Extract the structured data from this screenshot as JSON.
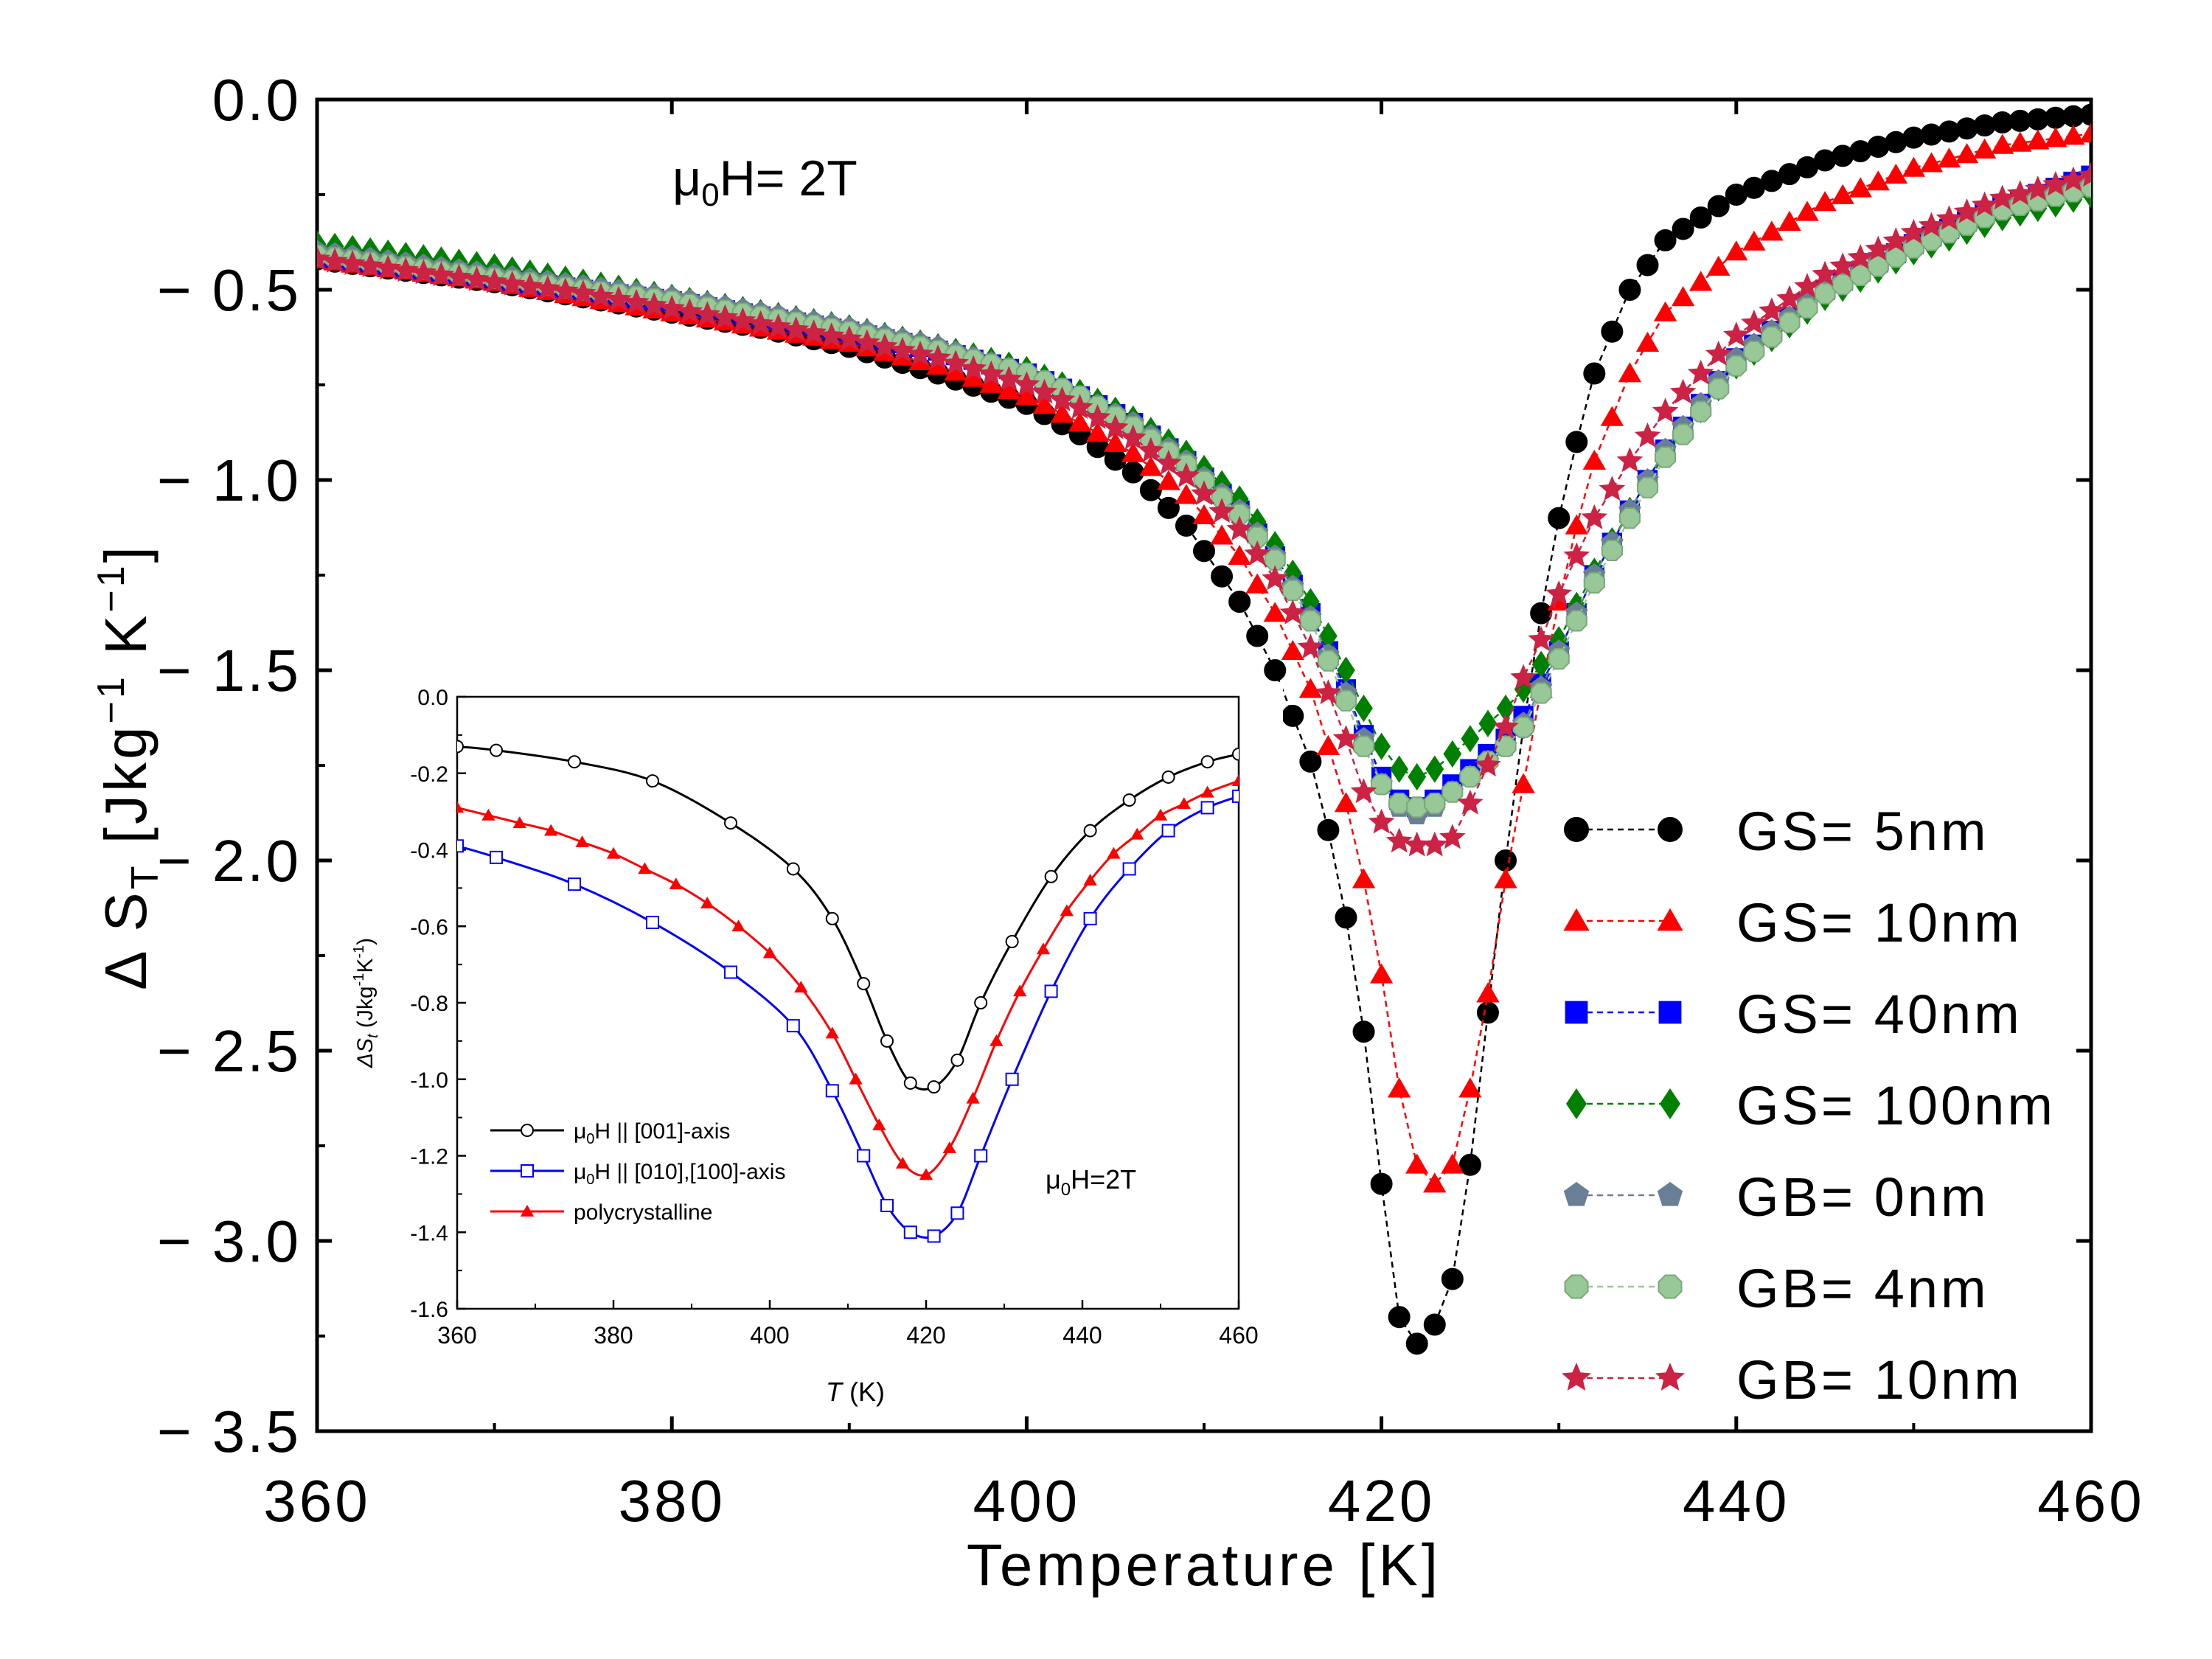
{
  "chart_data": [
    {
      "type": "scatter",
      "xlabel": "Temperature [K]",
      "ylabel_parts": [
        "Δ S",
        "T",
        " [Jkg",
        "−1",
        " K",
        "−1",
        "]"
      ],
      "annotation_parts": [
        "μ",
        "0",
        "H= 2T"
      ],
      "xlim": [
        360,
        460
      ],
      "ylim": [
        -3.5,
        0.0
      ],
      "x_ticks": [
        360,
        380,
        400,
        420,
        440,
        460
      ],
      "x_tick_labels": [
        "360",
        "380",
        "400",
        "420",
        "440",
        "460"
      ],
      "y_ticks": [
        0.0,
        -0.5,
        -1.0,
        -1.5,
        -2.0,
        -2.5,
        -3.0,
        -3.5
      ],
      "y_tick_labels": [
        "0.0",
        "− 0.5",
        "− 1.0",
        "− 1.5",
        "− 2.0",
        "− 2.5",
        "− 3.0",
        "− 3.5"
      ],
      "grid": false,
      "legend_position": "right",
      "series": [
        {
          "name": "GS= 5nm",
          "marker": "circle",
          "color": "#000000",
          "line_color": "#000000",
          "x": [
            360,
            365,
            370,
            375,
            380,
            385,
            390,
            395,
            400,
            403,
            406,
            409,
            412,
            414,
            416,
            417,
            418,
            419,
            420,
            421,
            422,
            423,
            424,
            425,
            426,
            427,
            428,
            429,
            430,
            431,
            432,
            434,
            436,
            440,
            445,
            450,
            455,
            460
          ],
          "y": [
            -0.42,
            -0.45,
            -0.48,
            -0.52,
            -0.56,
            -0.6,
            -0.65,
            -0.72,
            -0.8,
            -0.88,
            -0.98,
            -1.12,
            -1.32,
            -1.5,
            -1.74,
            -1.92,
            -2.15,
            -2.45,
            -2.85,
            -3.2,
            -3.27,
            -3.22,
            -3.1,
            -2.8,
            -2.4,
            -2.0,
            -1.65,
            -1.35,
            -1.1,
            -0.9,
            -0.72,
            -0.5,
            -0.37,
            -0.25,
            -0.16,
            -0.1,
            -0.06,
            -0.04
          ]
        },
        {
          "name": "GS= 10nm",
          "marker": "triangle",
          "color": "#ff0000",
          "line_color": "#ff0000",
          "x": [
            360,
            365,
            370,
            375,
            380,
            385,
            390,
            395,
            400,
            403,
            406,
            409,
            412,
            414,
            416,
            418,
            419,
            420,
            421,
            422,
            423,
            424,
            425,
            426,
            427,
            428,
            429,
            430,
            431,
            432,
            434,
            436,
            440,
            445,
            450,
            455,
            460
          ],
          "y": [
            -0.42,
            -0.45,
            -0.48,
            -0.52,
            -0.56,
            -0.6,
            -0.64,
            -0.7,
            -0.78,
            -0.85,
            -0.93,
            -1.04,
            -1.2,
            -1.35,
            -1.55,
            -1.85,
            -2.05,
            -2.3,
            -2.6,
            -2.8,
            -2.85,
            -2.8,
            -2.6,
            -2.35,
            -2.05,
            -1.8,
            -1.55,
            -1.32,
            -1.12,
            -0.95,
            -0.72,
            -0.56,
            -0.4,
            -0.27,
            -0.18,
            -0.12,
            -0.09
          ]
        },
        {
          "name": "GS= 40nm",
          "marker": "square",
          "color": "#0000ff",
          "line_color": "#0000ff",
          "x": [
            360,
            365,
            370,
            375,
            380,
            385,
            390,
            395,
            400,
            403,
            406,
            409,
            412,
            414,
            416,
            418,
            419,
            420,
            421,
            422,
            423,
            424,
            425,
            426,
            427,
            428,
            430,
            432,
            434,
            436,
            440,
            445,
            450,
            455,
            460
          ],
          "y": [
            -0.41,
            -0.44,
            -0.47,
            -0.5,
            -0.53,
            -0.57,
            -0.61,
            -0.66,
            -0.72,
            -0.78,
            -0.85,
            -0.95,
            -1.08,
            -1.2,
            -1.35,
            -1.55,
            -1.67,
            -1.78,
            -1.84,
            -1.86,
            -1.84,
            -1.8,
            -1.76,
            -1.72,
            -1.68,
            -1.62,
            -1.45,
            -1.25,
            -1.08,
            -0.92,
            -0.68,
            -0.5,
            -0.38,
            -0.28,
            -0.2
          ]
        },
        {
          "name": "GS= 100nm",
          "marker": "diamond",
          "color": "#008000",
          "line_color": "#008000",
          "x": [
            360,
            365,
            370,
            375,
            380,
            385,
            390,
            395,
            400,
            403,
            406,
            409,
            412,
            414,
            416,
            418,
            419,
            420,
            421,
            422,
            423,
            424,
            425,
            426,
            427,
            428,
            430,
            432,
            434,
            436,
            440,
            445,
            450,
            455,
            460
          ],
          "y": [
            -0.38,
            -0.41,
            -0.44,
            -0.48,
            -0.52,
            -0.56,
            -0.6,
            -0.65,
            -0.71,
            -0.77,
            -0.84,
            -0.93,
            -1.05,
            -1.17,
            -1.32,
            -1.5,
            -1.6,
            -1.7,
            -1.76,
            -1.78,
            -1.76,
            -1.72,
            -1.68,
            -1.64,
            -1.6,
            -1.55,
            -1.42,
            -1.24,
            -1.08,
            -0.93,
            -0.7,
            -0.52,
            -0.4,
            -0.31,
            -0.25
          ]
        },
        {
          "name": "GB= 0nm",
          "marker": "pentagon",
          "color": "#6a7f95",
          "line_color": "#6a7f95",
          "x": [
            360,
            365,
            370,
            375,
            380,
            385,
            390,
            395,
            400,
            403,
            406,
            409,
            412,
            414,
            416,
            418,
            419,
            420,
            421,
            422,
            423,
            424,
            425,
            426,
            427,
            428,
            430,
            432,
            434,
            436,
            440,
            445,
            450,
            455,
            460
          ],
          "y": [
            -0.4,
            -0.43,
            -0.46,
            -0.49,
            -0.52,
            -0.56,
            -0.6,
            -0.65,
            -0.72,
            -0.78,
            -0.85,
            -0.95,
            -1.08,
            -1.2,
            -1.36,
            -1.56,
            -1.68,
            -1.8,
            -1.86,
            -1.88,
            -1.86,
            -1.82,
            -1.78,
            -1.74,
            -1.7,
            -1.64,
            -1.45,
            -1.25,
            -1.08,
            -0.92,
            -0.68,
            -0.5,
            -0.38,
            -0.28,
            -0.21
          ]
        },
        {
          "name": "GB= 4nm",
          "marker": "octagon",
          "color": "#98c898",
          "line_color": "#98c898",
          "x": [
            360,
            365,
            370,
            375,
            380,
            385,
            390,
            395,
            400,
            403,
            406,
            409,
            412,
            414,
            416,
            418,
            419,
            420,
            421,
            422,
            423,
            424,
            425,
            426,
            427,
            428,
            430,
            432,
            434,
            436,
            440,
            445,
            450,
            455,
            460
          ],
          "y": [
            -0.41,
            -0.44,
            -0.47,
            -0.5,
            -0.53,
            -0.57,
            -0.61,
            -0.66,
            -0.72,
            -0.78,
            -0.86,
            -0.96,
            -1.09,
            -1.21,
            -1.37,
            -1.58,
            -1.7,
            -1.8,
            -1.85,
            -1.86,
            -1.85,
            -1.82,
            -1.78,
            -1.74,
            -1.7,
            -1.65,
            -1.47,
            -1.27,
            -1.1,
            -0.94,
            -0.7,
            -0.51,
            -0.39,
            -0.29,
            -0.23
          ]
        },
        {
          "name": "GB= 10nm",
          "marker": "star",
          "color": "#cc2244",
          "line_color": "#cc2244",
          "x": [
            360,
            365,
            370,
            375,
            380,
            385,
            390,
            395,
            400,
            403,
            406,
            409,
            412,
            414,
            416,
            418,
            419,
            420,
            421,
            422,
            423,
            424,
            425,
            426,
            427,
            428,
            429,
            430,
            432,
            434,
            436,
            440,
            445,
            450,
            455,
            460
          ],
          "y": [
            -0.42,
            -0.45,
            -0.48,
            -0.51,
            -0.55,
            -0.59,
            -0.63,
            -0.68,
            -0.75,
            -0.81,
            -0.89,
            -0.99,
            -1.13,
            -1.26,
            -1.44,
            -1.68,
            -1.82,
            -1.9,
            -1.95,
            -1.96,
            -1.96,
            -1.94,
            -1.85,
            -1.75,
            -1.65,
            -1.52,
            -1.42,
            -1.3,
            -1.1,
            -0.95,
            -0.82,
            -0.62,
            -0.46,
            -0.35,
            -0.26,
            -0.2
          ]
        }
      ]
    },
    {
      "type": "line",
      "position": "inset",
      "xlabel_parts": [
        "T",
        " (K)"
      ],
      "ylabel_parts": [
        "ΔS",
        "t",
        " (Jkg",
        "-1",
        "K",
        "-1",
        ")"
      ],
      "annotation_parts": [
        "μ",
        "0",
        "H=2T"
      ],
      "xlim": [
        360,
        460
      ],
      "ylim": [
        -1.6,
        0.0
      ],
      "x_ticks": [
        360,
        380,
        400,
        420,
        440,
        460
      ],
      "x_tick_labels": [
        "360",
        "380",
        "400",
        "420",
        "440",
        "460"
      ],
      "y_ticks": [
        0.0,
        -0.2,
        -0.4,
        -0.6,
        -0.8,
        -1.0,
        -1.2,
        -1.4,
        -1.6
      ],
      "y_tick_labels": [
        "0.0",
        "-0.2",
        "-0.4",
        "-0.6",
        "-0.8",
        "-1.0",
        "-1.2",
        "-1.4",
        "-1.6"
      ],
      "grid": false,
      "legend_position": "bottom-left",
      "series": [
        {
          "name_parts": [
            "μ",
            "0",
            "H || [001]-axis"
          ],
          "marker": "open-circle",
          "color": "#000000",
          "x": [
            360,
            365,
            375,
            385,
            395,
            403,
            408,
            412,
            415,
            418,
            421,
            424,
            427,
            431,
            436,
            441,
            446,
            451,
            456,
            460
          ],
          "y": [
            -0.13,
            -0.14,
            -0.17,
            -0.22,
            -0.33,
            -0.45,
            -0.58,
            -0.75,
            -0.9,
            -1.01,
            -1.02,
            -0.95,
            -0.8,
            -0.64,
            -0.47,
            -0.35,
            -0.27,
            -0.21,
            -0.17,
            -0.15
          ]
        },
        {
          "name_parts": [
            "μ",
            "0",
            "H || [010],[100]-axis"
          ],
          "marker": "open-square",
          "color": "#0000ff",
          "x": [
            360,
            365,
            375,
            385,
            395,
            403,
            408,
            412,
            415,
            418,
            421,
            424,
            427,
            431,
            436,
            441,
            446,
            451,
            456,
            460
          ],
          "y": [
            -0.39,
            -0.42,
            -0.49,
            -0.59,
            -0.72,
            -0.86,
            -1.03,
            -1.2,
            -1.33,
            -1.4,
            -1.41,
            -1.35,
            -1.2,
            -1.0,
            -0.77,
            -0.58,
            -0.45,
            -0.35,
            -0.29,
            -0.26
          ]
        },
        {
          "name_parts": [
            "polycrystalline"
          ],
          "marker": "filled-triangle",
          "color": "#ff0000",
          "x": [
            360,
            364,
            368,
            372,
            376,
            380,
            384,
            388,
            392,
            396,
            400,
            404,
            408,
            411,
            414,
            417,
            420,
            423,
            426,
            429,
            432,
            435,
            438,
            441,
            444,
            447,
            450,
            453,
            456,
            460
          ],
          "y": [
            -0.29,
            -0.31,
            -0.33,
            -0.35,
            -0.38,
            -0.41,
            -0.45,
            -0.49,
            -0.54,
            -0.6,
            -0.67,
            -0.76,
            -0.88,
            -1.0,
            -1.12,
            -1.22,
            -1.25,
            -1.18,
            -1.05,
            -0.9,
            -0.77,
            -0.66,
            -0.56,
            -0.48,
            -0.41,
            -0.36,
            -0.31,
            -0.28,
            -0.25,
            -0.22
          ]
        }
      ]
    }
  ]
}
